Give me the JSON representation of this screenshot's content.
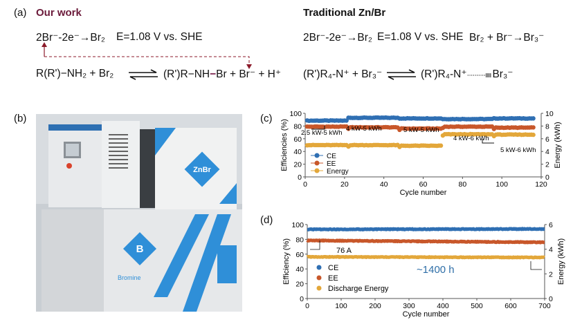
{
  "panel_a": {
    "label": "(a)",
    "our_work": {
      "title": "Our work",
      "title_color": "#6b1a3a",
      "eq1": "2Br⁻-2e⁻→Br₂",
      "potential": "E=1.08 V vs. SHE",
      "reactants": "R(R')−NH₂ + Br₂",
      "product_left": "(R')R−NH",
      "product_bond": "−",
      "product_right": "Br + Br⁻ + H⁺",
      "arrow_color": "#8b1a2a"
    },
    "traditional": {
      "title": "Traditional Zn/Br",
      "eq1": "2Br⁻-2e⁻→Br₂",
      "potential": "E=1.08 V vs. SHE",
      "eq2": "Br₂ + Br⁻→Br₃⁻",
      "reactants": "(R')R₄-N⁺ + Br₃⁻",
      "product_left": "(R')R₄-N⁺",
      "product_right": "Br₃⁻"
    }
  },
  "panel_b": {
    "label": "(b)",
    "logo_stack": "ZnBr",
    "logo_tank": "B",
    "brand": "Bromine"
  },
  "chart_data": [
    {
      "panel": "(c)",
      "type": "scatter",
      "xlabel": "Cycle number",
      "ylabel": "Efficiencies (%)",
      "y2label": "Energy (kWh)",
      "xlim": [
        0,
        120
      ],
      "ylim": [
        0,
        100
      ],
      "y2lim": [
        0,
        10
      ],
      "xticks": [
        0,
        20,
        40,
        60,
        80,
        100,
        120
      ],
      "yticks": [
        0,
        20,
        40,
        60,
        80,
        100
      ],
      "y2ticks": [
        0,
        2,
        4,
        6,
        8,
        10
      ],
      "legend": "bottom-left",
      "series": [
        {
          "name": "CE",
          "axis": "left",
          "color": "#2f6fb3"
        },
        {
          "name": "EE",
          "axis": "left",
          "color": "#c8572a"
        },
        {
          "name": "Energy",
          "axis": "right",
          "color": "#e3a73a"
        }
      ],
      "segments": [
        {
          "label": "2.5 kW-5 kWh",
          "cycles": [
            1,
            21
          ],
          "CE": 88.5,
          "EE": 79,
          "Energy": 5.0
        },
        {
          "label": "4 kW-5 kWh",
          "cycles": [
            22,
            47
          ],
          "CE": 93,
          "EE": 78,
          "Energy": 5.0
        },
        {
          "label": "5 kW-5 kWh",
          "cycles": [
            48,
            69
          ],
          "CE": 92,
          "EE": 76,
          "Energy": 4.9
        },
        {
          "label": "4 kW-6 kWh",
          "cycles": [
            70,
            95
          ],
          "CE": 91,
          "EE": 79,
          "Energy": 6.7
        },
        {
          "label": "5 kW-6 kWh",
          "cycles": [
            96,
            116
          ],
          "CE": 92,
          "EE": 77.5,
          "Energy": 6.65
        }
      ]
    },
    {
      "panel": "(d)",
      "type": "scatter",
      "xlabel": "Cycle number",
      "ylabel": "Efficiency (%)",
      "y2label": "Energy (kWh)",
      "xlim": [
        0,
        700
      ],
      "ylim": [
        0,
        100
      ],
      "y2lim": [
        0,
        6
      ],
      "xticks": [
        0,
        100,
        200,
        300,
        400,
        500,
        600,
        700
      ],
      "yticks": [
        0,
        20,
        40,
        60,
        80,
        100
      ],
      "y2ticks": [
        0,
        2,
        4,
        6
      ],
      "legend": "bottom-left",
      "annotations": [
        "76 A",
        "~1400 h"
      ],
      "series": [
        {
          "name": "CE",
          "axis": "left",
          "color": "#2f6fb3",
          "start": 93.5,
          "end": 94
        },
        {
          "name": "EE",
          "axis": "left",
          "color": "#c8572a",
          "start": 78.5,
          "end": 76
        },
        {
          "name": "Discharge Energy",
          "axis": "right",
          "color": "#e3a73a",
          "start": 3.38,
          "end": 3.33
        }
      ]
    }
  ]
}
